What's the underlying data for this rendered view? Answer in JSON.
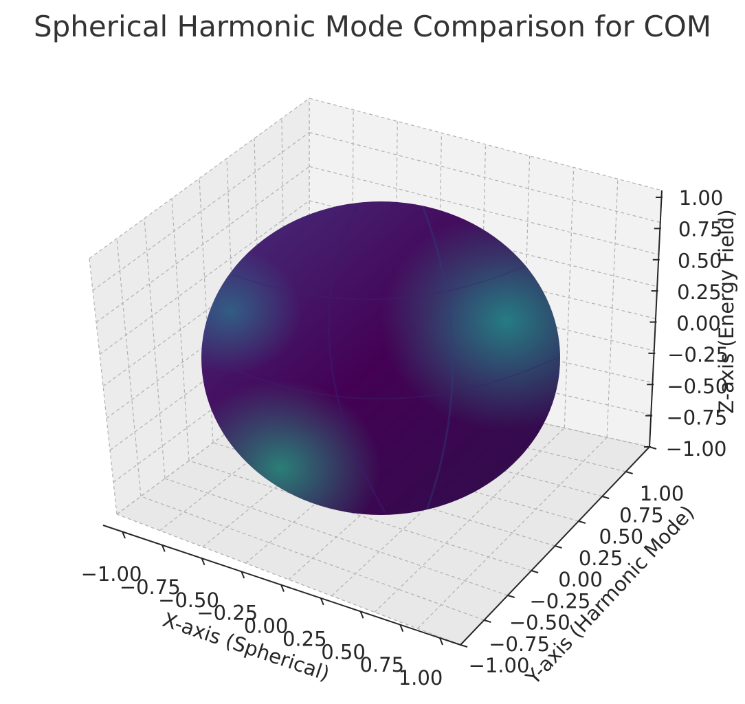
{
  "chart_data": {
    "type": "surface3d",
    "title": "Spherical Harmonic Mode Comparison for COM",
    "xlabel": "X-axis (Spherical)",
    "ylabel": "Y-axis (Harmonic Mode)",
    "zlabel": "Z-axis (Energy Field)",
    "xlim": [
      -1,
      1
    ],
    "ylim": [
      -1,
      1
    ],
    "zlim": [
      -1,
      1
    ],
    "x_ticks": [
      "−1.00",
      "−0.75",
      "−0.50",
      "−0.25",
      "0.00",
      "0.25",
      "0.50",
      "0.75",
      "1.00"
    ],
    "y_ticks": [
      "−1.00",
      "−0.75",
      "−0.50",
      "−0.25",
      "0.00",
      "0.25",
      "0.50",
      "0.75",
      "1.00"
    ],
    "z_ticks": [
      "−1.00",
      "−0.75",
      "−0.50",
      "−0.25",
      "0.00",
      "0.25",
      "0.50",
      "0.75",
      "1.00"
    ],
    "surface": {
      "shape": "unit sphere",
      "radius": 1,
      "colormap": "viridis",
      "colors": {
        "low": "#440154",
        "mid": "#2a6f8e",
        "high": "#21918c"
      }
    },
    "grid": true,
    "pane_color": "#f2f2f2"
  }
}
